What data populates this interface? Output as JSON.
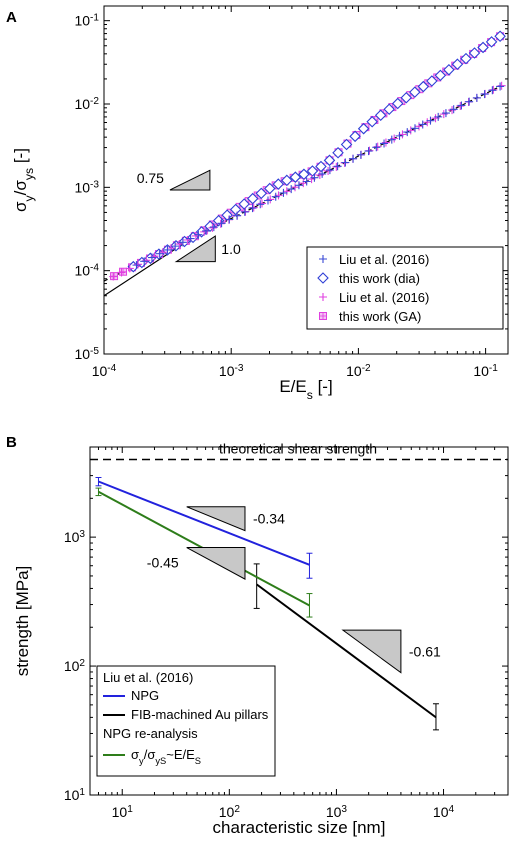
{
  "chart_data": [
    {
      "panel": "A",
      "type": "scatter",
      "xscale": "log",
      "yscale": "log",
      "xlim": [
        0.0001,
        0.15
      ],
      "ylim": [
        1e-05,
        0.15
      ],
      "xlabel": {
        "base": "E/E",
        "sub": "s",
        "tail": " [-]"
      },
      "ylabel": {
        "parts": [
          [
            "σ",
            ""
          ],
          [
            "y",
            "sub"
          ],
          [
            "/σ",
            ""
          ],
          [
            "ys",
            "sub"
          ],
          [
            " [-]",
            ""
          ]
        ]
      },
      "xticks": [
        {
          "value": 0.0001,
          "base": "10",
          "exp": "-4"
        },
        {
          "value": 0.001,
          "base": "10",
          "exp": "-3"
        },
        {
          "value": 0.01,
          "base": "10",
          "exp": "-2"
        },
        {
          "value": 0.1,
          "base": "10",
          "exp": "-1"
        }
      ],
      "yticks": [
        {
          "value": 1e-05,
          "base": "10",
          "exp": "-5"
        },
        {
          "value": 0.0001,
          "base": "10",
          "exp": "-4"
        },
        {
          "value": 0.001,
          "base": "10",
          "exp": "-3"
        },
        {
          "value": 0.01,
          "base": "10",
          "exp": "-2"
        },
        {
          "value": 0.1,
          "base": "10",
          "exp": "-1"
        }
      ],
      "grid": false,
      "legend_position": "bottom-right",
      "series": [
        {
          "name": "Liu et al. (2016)",
          "marker": "plus",
          "color": "#3a49d6",
          "line": {
            "style": "dashed",
            "color": "#000000",
            "y_at_x1": 0.075,
            "slope": 0.75
          },
          "x_range": [
            0.00018,
            0.13
          ],
          "count": 48
        },
        {
          "name": "this work (dia)",
          "marker": "diamond",
          "color": "#2f3fd6",
          "line": {
            "style": "solid",
            "color": "#000000",
            "y_at_x1": 0.5,
            "slope": 1.0,
            "x_range": [
              0.0001,
              0.0009
            ]
          },
          "x_range": [
            0.00017,
            0.13
          ],
          "count": 44
        },
        {
          "name": "Liu et al. (2016)",
          "marker": "plus",
          "color": "#e040e0",
          "x_range": [
            0.000115,
            0.13
          ],
          "count": 48
        },
        {
          "name": "this work (GA)",
          "marker": "square-plus",
          "color": "#e040e0",
          "x_range": [
            0.00012,
            0.13
          ],
          "count": 44
        }
      ],
      "annotations": [
        {
          "label": "0.75",
          "slope": 0.75,
          "x_from": 0.00033,
          "x_to": 0.00068,
          "y_right": 0.0016
        },
        {
          "label": "1.0",
          "slope": 1.0,
          "x_from": 0.00037,
          "x_to": 0.00075,
          "y_right": 0.00026
        }
      ]
    },
    {
      "panel": "B",
      "type": "line",
      "xscale": "log",
      "yscale": "log",
      "xlim": [
        5,
        40000
      ],
      "ylim": [
        10,
        5000
      ],
      "xlabel": "characteristic size [nm]",
      "ylabel": "strength [MPa]",
      "xticks": [
        {
          "value": 10,
          "base": "10",
          "exp": "1"
        },
        {
          "value": 100,
          "base": "10",
          "exp": "2"
        },
        {
          "value": 1000,
          "base": "10",
          "exp": "3"
        },
        {
          "value": 10000,
          "base": "10",
          "exp": "4"
        }
      ],
      "yticks": [
        {
          "value": 10,
          "base": "10",
          "exp": "1"
        },
        {
          "value": 100,
          "base": "10",
          "exp": "2"
        },
        {
          "value": 1000,
          "base": "10",
          "exp": "3"
        }
      ],
      "grid": false,
      "reference_line": {
        "label": "theoretical shear strength",
        "y": 4000,
        "style": "dashed"
      },
      "legend_position": "bottom-left",
      "legend": {
        "heading1": "Liu et al. (2016)",
        "heading2": "NPG re-analysis",
        "greenlabel": [
          [
            "σ",
            ""
          ],
          [
            "y",
            "sub"
          ],
          [
            "/σ",
            ""
          ],
          [
            "yS",
            "sub"
          ],
          [
            "~E/E",
            ""
          ],
          [
            "S",
            "sub"
          ]
        ]
      },
      "series": [
        {
          "name": "NPG",
          "color": "#2222dd",
          "points": [
            [
              6,
              2700
            ],
            [
              560,
              610
            ]
          ],
          "errors": [
            [
              6,
              2500,
              2900
            ],
            [
              560,
              480,
              750
            ]
          ]
        },
        {
          "name": "FIB-machined Au pillars",
          "color": "#000000",
          "points": [
            [
              180,
              430
            ],
            [
              8500,
              40
            ]
          ],
          "errors": [
            [
              180,
              280,
              620
            ],
            [
              8500,
              32,
              51
            ]
          ]
        },
        {
          "name": "re-analysis",
          "color": "#2e7d1a",
          "points": [
            [
              6,
              2250
            ],
            [
              560,
              295
            ]
          ],
          "errors": [
            [
              6,
              2100,
              2400
            ],
            [
              560,
              240,
              365
            ]
          ]
        }
      ],
      "annotations": [
        {
          "label": "-0.34",
          "slope": -0.34,
          "x_from": 40,
          "x_to": 140,
          "y_top": 1720
        },
        {
          "label": "-0.45",
          "slope": -0.45,
          "x_from": 40,
          "x_to": 140,
          "y_top": 830
        },
        {
          "label": "-0.61",
          "slope": -0.61,
          "x_from": 1150,
          "x_to": 4000,
          "y_top": 190
        }
      ]
    }
  ]
}
